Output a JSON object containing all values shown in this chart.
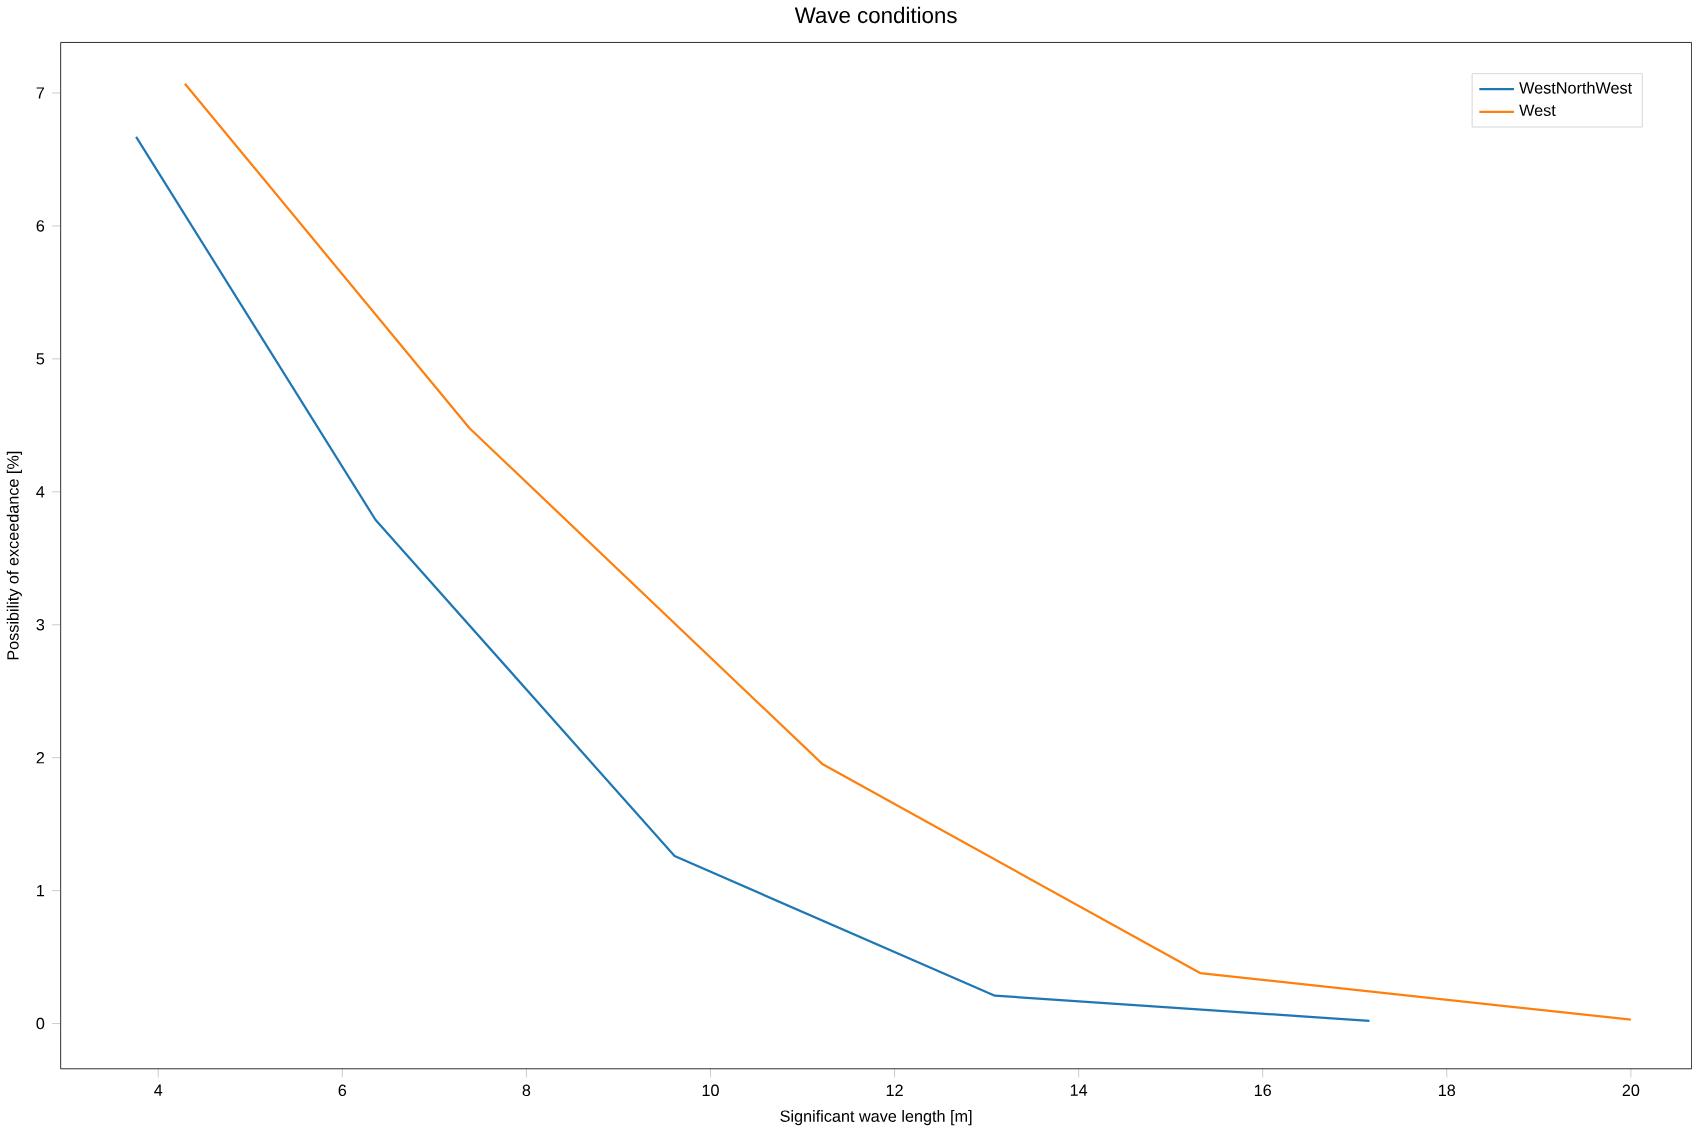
{
  "chart_data": {
    "type": "line",
    "title": "Wave conditions",
    "xlabel": "Significant wave length [m]",
    "ylabel": "Possibility of exceedance [%]",
    "series": [
      {
        "name": "WestNorthWest",
        "color": "#1f77b4",
        "x": [
          3.76,
          6.36,
          9.61,
          13.09,
          17.16
        ],
        "values": [
          6.67,
          3.79,
          1.26,
          0.21,
          0.02
        ]
      },
      {
        "name": "West",
        "color": "#ff7f0e",
        "x": [
          4.29,
          7.38,
          11.22,
          15.32,
          20.0
        ],
        "values": [
          7.07,
          4.48,
          1.95,
          0.38,
          0.03
        ]
      }
    ],
    "xlim": [
      2.94,
      20.66
    ],
    "ylim": [
      -0.34,
      7.38
    ],
    "xticks": [
      4,
      6,
      8,
      10,
      12,
      14,
      16,
      18,
      20
    ],
    "yticks": [
      0,
      1,
      2,
      3,
      4,
      5,
      6,
      7
    ],
    "grid": false,
    "legend": "top right",
    "marker": "none",
    "line_style": "solid"
  }
}
